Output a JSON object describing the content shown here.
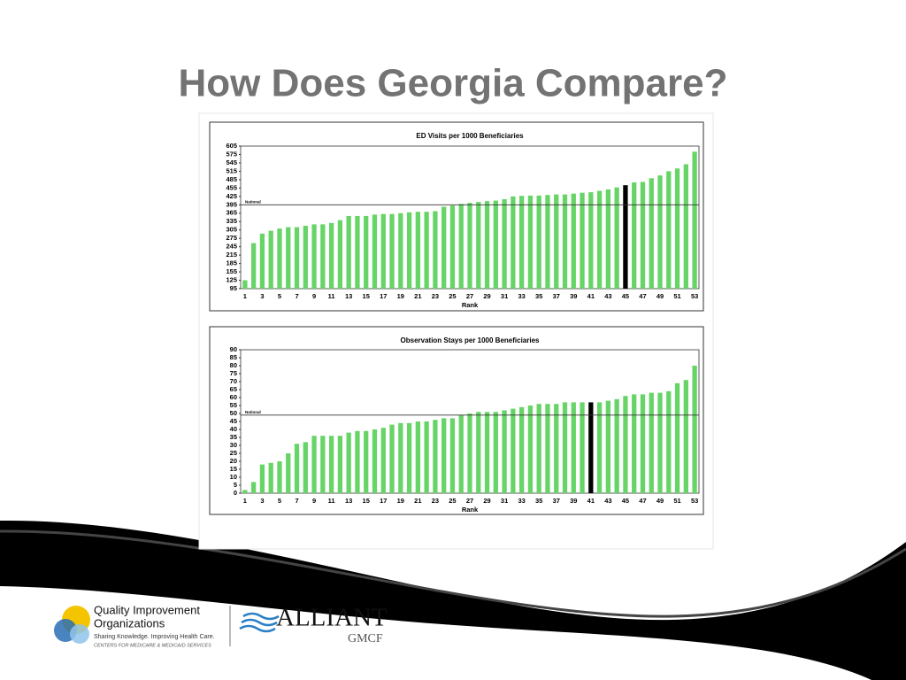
{
  "title": "How Does Georgia Compare?",
  "chart_data": [
    {
      "type": "bar",
      "title": "ED Visits per 1000 Beneficiaries",
      "x_label": "Rank",
      "categories": [
        "1",
        null,
        "3",
        null,
        "5",
        null,
        "7",
        null,
        "9",
        null,
        "11",
        null,
        "13",
        null,
        "15",
        null,
        "17",
        null,
        "19",
        null,
        "21",
        null,
        "23",
        null,
        "25",
        null,
        "27",
        null,
        "29",
        null,
        "31",
        null,
        "33",
        null,
        "35",
        null,
        "37",
        null,
        "39",
        null,
        "41",
        null,
        "43",
        null,
        "45",
        null,
        "47",
        null,
        "49",
        null,
        "51",
        null,
        "53"
      ],
      "values": [
        125,
        258,
        292,
        302,
        310,
        315,
        315,
        320,
        325,
        325,
        330,
        340,
        355,
        355,
        355,
        360,
        362,
        362,
        365,
        368,
        370,
        370,
        372,
        388,
        392,
        398,
        402,
        405,
        408,
        410,
        415,
        425,
        427,
        428,
        428,
        430,
        432,
        432,
        435,
        438,
        440,
        445,
        450,
        457,
        465,
        475,
        477,
        490,
        500,
        515,
        525,
        540,
        585
      ],
      "colors": [
        "#66d466",
        "#66d466",
        "#66d466",
        "#66d466",
        "#66d466",
        "#66d466",
        "#66d466",
        "#66d466",
        "#66d466",
        "#66d466",
        "#66d466",
        "#66d466",
        "#66d466",
        "#66d466",
        "#66d466",
        "#66d466",
        "#66d466",
        "#66d466",
        "#66d466",
        "#66d466",
        "#66d466",
        "#66d466",
        "#66d466",
        "#66d466",
        "#66d466",
        "#66d466",
        "#66d466",
        "#66d466",
        "#66d466",
        "#66d466",
        "#66d466",
        "#66d466",
        "#66d466",
        "#66d466",
        "#66d466",
        "#66d466",
        "#66d466",
        "#66d466",
        "#66d466",
        "#66d466",
        "#66d466",
        "#66d466",
        "#66d466",
        "#66d466",
        "#000000",
        "#66d466",
        "#66d466",
        "#66d466",
        "#66d466",
        "#66d466",
        "#66d466",
        "#66d466",
        "#66d466"
      ],
      "ylim": [
        95,
        605
      ],
      "yticks": [
        95,
        125,
        155,
        185,
        215,
        245,
        275,
        305,
        335,
        365,
        395,
        425,
        455,
        485,
        515,
        545,
        575,
        605
      ],
      "reference_line": {
        "label": "National",
        "value": 395
      }
    },
    {
      "type": "bar",
      "title": "Observation Stays per 1000 Beneficiaries",
      "x_label": "Rank",
      "categories": [
        "1",
        null,
        "3",
        null,
        "5",
        null,
        "7",
        null,
        "9",
        null,
        "11",
        null,
        "13",
        null,
        "15",
        null,
        "17",
        null,
        "19",
        null,
        "21",
        null,
        "23",
        null,
        "25",
        null,
        "27",
        null,
        "29",
        null,
        "31",
        null,
        "33",
        null,
        "35",
        null,
        "37",
        null,
        "39",
        null,
        "41",
        null,
        "43",
        null,
        "45",
        null,
        "47",
        null,
        "49",
        null,
        "51",
        null,
        "53"
      ],
      "values": [
        2,
        7,
        18,
        19,
        20,
        25,
        31,
        32,
        36,
        36,
        36,
        36,
        38,
        39,
        39,
        40,
        41,
        43,
        44,
        44,
        45,
        45,
        46,
        47,
        47,
        49,
        50,
        51,
        51,
        51,
        52,
        53,
        54,
        55,
        56,
        56,
        56,
        57,
        57,
        57,
        57,
        57,
        58,
        59,
        61,
        62,
        62,
        63,
        63,
        64,
        69,
        71,
        80
      ],
      "colors": [
        "#66d466",
        "#66d466",
        "#66d466",
        "#66d466",
        "#66d466",
        "#66d466",
        "#66d466",
        "#66d466",
        "#66d466",
        "#66d466",
        "#66d466",
        "#66d466",
        "#66d466",
        "#66d466",
        "#66d466",
        "#66d466",
        "#66d466",
        "#66d466",
        "#66d466",
        "#66d466",
        "#66d466",
        "#66d466",
        "#66d466",
        "#66d466",
        "#66d466",
        "#66d466",
        "#66d466",
        "#66d466",
        "#66d466",
        "#66d466",
        "#66d466",
        "#66d466",
        "#66d466",
        "#66d466",
        "#66d466",
        "#66d466",
        "#66d466",
        "#66d466",
        "#66d466",
        "#66d466",
        "#000000",
        "#66d466",
        "#66d466",
        "#66d466",
        "#66d466",
        "#66d466",
        "#66d466",
        "#66d466",
        "#66d466",
        "#66d466",
        "#66d466",
        "#66d466",
        "#66d466"
      ],
      "ylim": [
        0,
        90
      ],
      "yticks": [
        0,
        5,
        10,
        15,
        20,
        25,
        30,
        35,
        40,
        45,
        50,
        55,
        60,
        65,
        70,
        75,
        80,
        85,
        90
      ],
      "reference_line": {
        "label": "National",
        "value": 49
      }
    }
  ],
  "footer": {
    "qio_line1": "Quality Improvement",
    "qio_line2": "Organizations",
    "qio_tagline": "Sharing Knowledge. Improving Health Care.",
    "qio_cms": "CENTERS FOR MEDICARE & MEDICAID SERVICES",
    "alliant": "ALLIANT",
    "gmcf": "GMCF"
  }
}
